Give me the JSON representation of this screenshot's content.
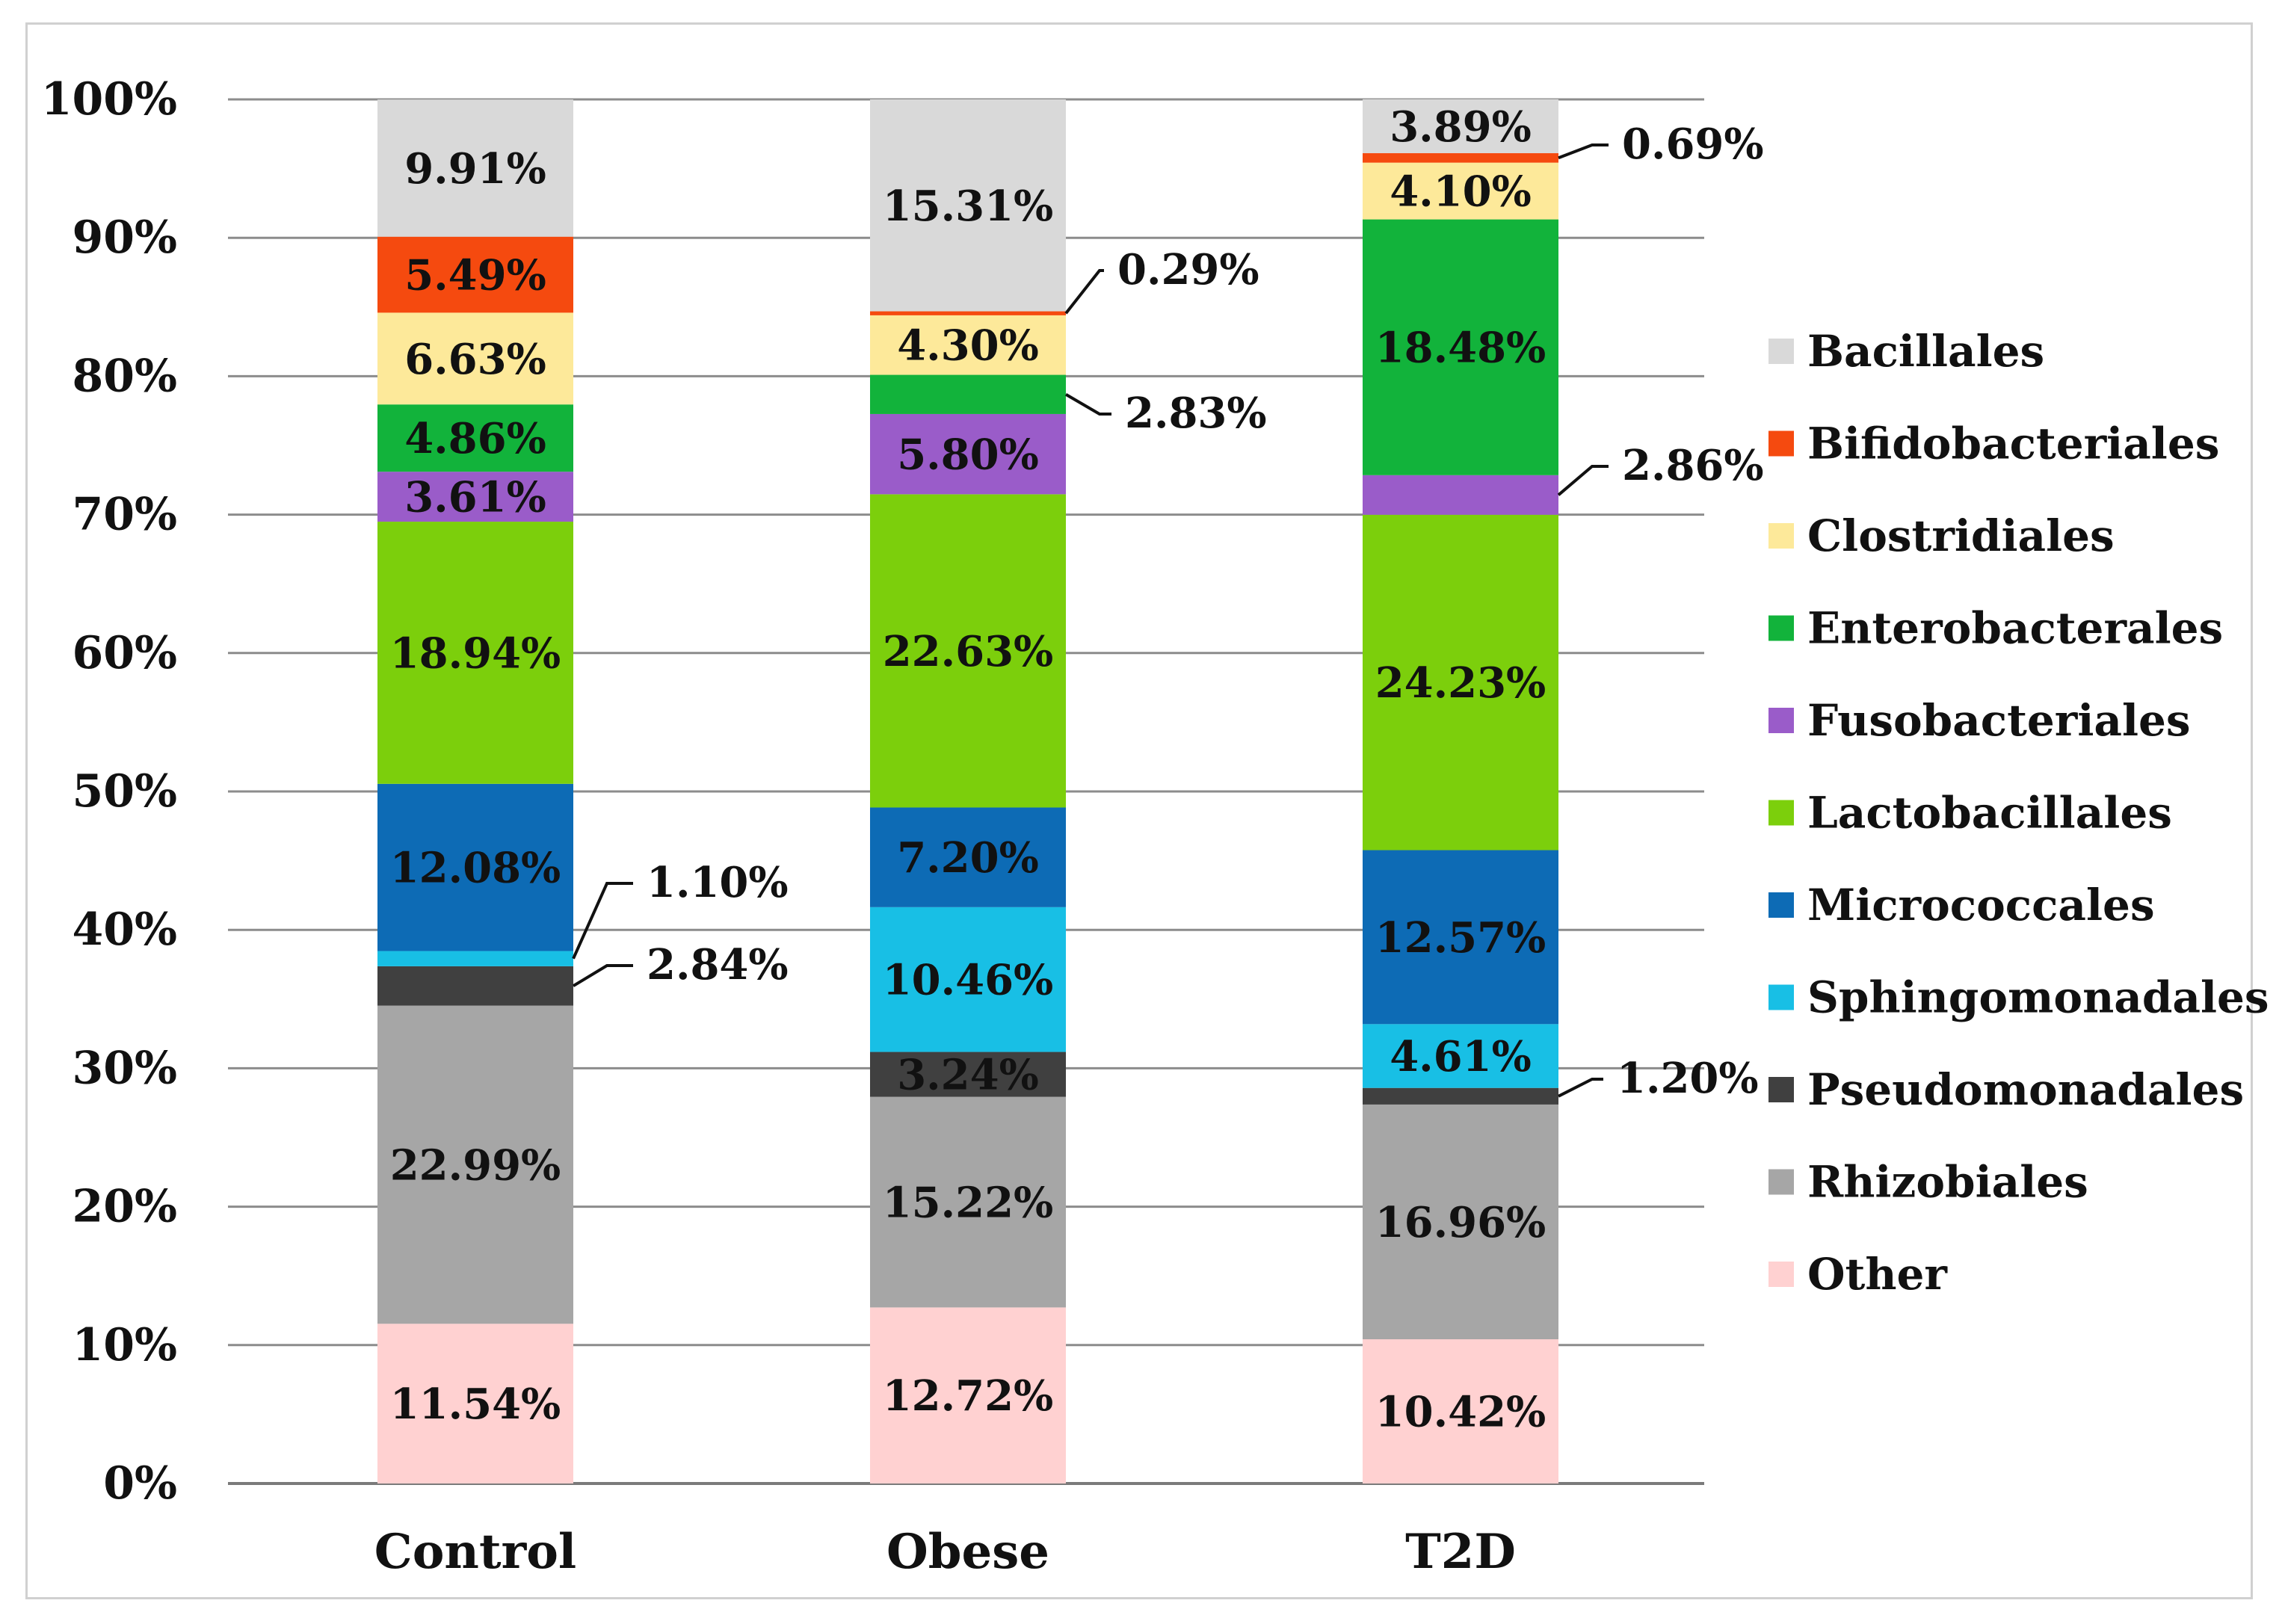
{
  "chart_data": {
    "type": "bar",
    "stacked": true,
    "normalized": true,
    "title": "",
    "xlabel": "",
    "ylabel": "",
    "ylim": [
      0,
      100
    ],
    "y_ticks": [
      "0%",
      "10%",
      "20%",
      "30%",
      "40%",
      "50%",
      "60%",
      "70%",
      "80%",
      "90%",
      "100%"
    ],
    "grid": true,
    "legend_position": "right",
    "categories": [
      "Control",
      "Obese",
      "T2D"
    ],
    "series": [
      {
        "name": "Other",
        "color": "#ffd1d1",
        "values": [
          11.54,
          12.72,
          10.42
        ],
        "labels": [
          "11.54%",
          "12.72%",
          "10.42%"
        ]
      },
      {
        "name": "Rhizobiales",
        "color": "#a6a6a6",
        "values": [
          22.99,
          15.22,
          16.96
        ],
        "labels": [
          "22.99%",
          "15.22%",
          "16.96%"
        ]
      },
      {
        "name": "Pseudomonadales",
        "color": "#404040",
        "values": [
          2.84,
          3.24,
          1.2
        ],
        "labels": [
          "2.84%",
          "3.24%",
          "1.20%"
        ]
      },
      {
        "name": "Sphingomonadales",
        "color": "#18bfe5",
        "values": [
          1.1,
          10.46,
          4.61
        ],
        "labels": [
          "1.10%",
          "10.46%",
          "4.61%"
        ]
      },
      {
        "name": "Micrococcales",
        "color": "#0d6bb5",
        "values": [
          12.08,
          7.2,
          12.57
        ],
        "labels": [
          "12.08%",
          "7.20%",
          "12.57%"
        ]
      },
      {
        "name": "Lactobacillales",
        "color": "#7ccf0c",
        "values": [
          18.94,
          22.63,
          24.23
        ],
        "labels": [
          "18.94%",
          "22.63%",
          "24.23%"
        ]
      },
      {
        "name": "Fusobacteriales",
        "color": "#9a5cc9",
        "values": [
          3.61,
          5.8,
          2.86
        ],
        "labels": [
          "3.61%",
          "5.80%",
          "2.86%"
        ]
      },
      {
        "name": "Enterobacterales",
        "color": "#12b33b",
        "values": [
          4.86,
          2.83,
          18.48
        ],
        "labels": [
          "4.86%",
          "2.83%",
          "18.48%"
        ]
      },
      {
        "name": "Clostridiales",
        "color": "#fde99a",
        "values": [
          6.63,
          4.3,
          4.1
        ],
        "labels": [
          "6.63%",
          "4.30%",
          "4.10%"
        ]
      },
      {
        "name": "Bifidobacteriales",
        "color": "#f54a0f",
        "values": [
          5.49,
          0.29,
          0.69
        ],
        "labels": [
          "5.49%",
          "0.29%",
          "0.69%"
        ]
      },
      {
        "name": "Bacillales",
        "color": "#d9d9d9",
        "values": [
          9.91,
          15.31,
          3.89
        ],
        "labels": [
          "9.91%",
          "15.31%",
          "3.89%"
        ]
      }
    ],
    "legend_order": [
      "Bacillales",
      "Bifidobacteriales",
      "Clostridiales",
      "Enterobacterales",
      "Fusobacteriales",
      "Lactobacillales",
      "Micrococcales",
      "Sphingomonadales",
      "Pseudomonadales",
      "Rhizobiales",
      "Other"
    ],
    "callout_labels": [
      {
        "series": "Sphingomonadales",
        "category": "Control"
      },
      {
        "series": "Pseudomonadales",
        "category": "Control"
      },
      {
        "series": "Bifidobacteriales",
        "category": "Obese"
      },
      {
        "series": "Enterobacterales",
        "category": "Obese"
      },
      {
        "series": "Bifidobacteriales",
        "category": "T2D"
      },
      {
        "series": "Fusobacteriales",
        "category": "T2D"
      },
      {
        "series": "Pseudomonadales",
        "category": "T2D"
      }
    ]
  }
}
